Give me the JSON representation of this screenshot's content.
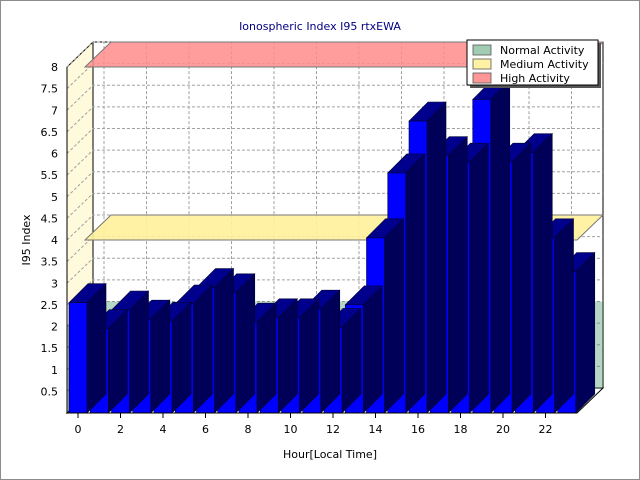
{
  "chart_data": {
    "type": "bar",
    "title": "Ionospheric Index I95 rtxEWA",
    "xlabel": "Hour[Local Time]",
    "ylabel": "I95 Index",
    "x": [
      0,
      1,
      2,
      3,
      4,
      5,
      6,
      7,
      8,
      9,
      10,
      11,
      12,
      13,
      14,
      15,
      16,
      17,
      18,
      19,
      20,
      21,
      22,
      23
    ],
    "values": [
      2.55,
      1.95,
      2.38,
      2.17,
      2.12,
      2.52,
      2.9,
      2.78,
      2.1,
      2.2,
      2.2,
      2.4,
      1.98,
      2.5,
      4.05,
      5.55,
      6.75,
      5.95,
      5.8,
      7.25,
      5.8,
      6.02,
      4.05,
      3.27
    ],
    "bar_color": "#0000ff",
    "ylim": [
      0,
      8
    ],
    "yticks": [
      "0.5",
      "1",
      "1.5",
      "2",
      "2.5",
      "3",
      "3.5",
      "4",
      "4.5",
      "5",
      "5.5",
      "6",
      "6.5",
      "7",
      "7.5",
      "8"
    ],
    "xticks": [
      "0",
      "2",
      "4",
      "6",
      "8",
      "10",
      "12",
      "14",
      "16",
      "18",
      "20",
      "22"
    ],
    "grid": true,
    "legend_position": "top-right",
    "bands": [
      {
        "name": "Normal Activity",
        "from": 0,
        "to": 2,
        "color": "#2e8b57"
      },
      {
        "name": "Medium Activity",
        "from": 4,
        "to": 4,
        "color": "#fff19a"
      },
      {
        "name": "High Activity",
        "from": 8,
        "to": 8,
        "color": "#ff8c8c"
      }
    ]
  }
}
